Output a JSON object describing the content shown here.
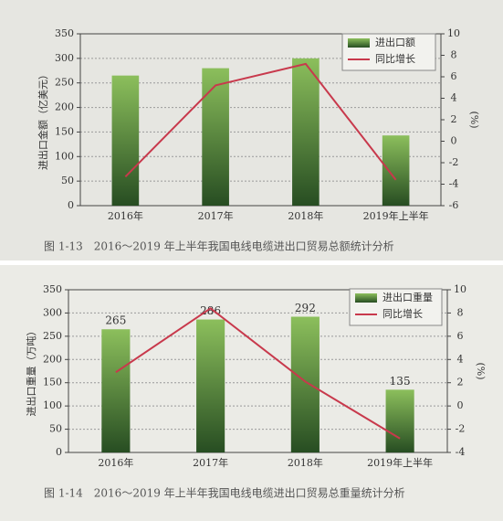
{
  "chart_data": [
    {
      "type": "combo",
      "y_label": "进出口金额（亿美元）",
      "y2_label": "(%)",
      "caption": "图 1-13　2016～2019 年上半年我国电线电缆进出口贸易总额统计分析",
      "categories": [
        "2016年",
        "2017年",
        "2018年",
        "2019年上半年"
      ],
      "series": [
        {
          "name": "进出口额",
          "type": "bar",
          "color": "#8cbf5c",
          "values": [
            265,
            280,
            300,
            143
          ]
        },
        {
          "name": "同比增长",
          "type": "line",
          "axis": "y2",
          "color": "#c8394c",
          "values": [
            -3.3,
            5.2,
            7.2,
            -3.6
          ]
        }
      ],
      "ylim": [
        0,
        350
      ],
      "yticks": [
        0,
        50,
        100,
        150,
        200,
        250,
        300,
        350
      ],
      "y2lim": [
        -6,
        10
      ],
      "y2ticks": [
        -6,
        -4,
        -2,
        0,
        2,
        4,
        6,
        8,
        10
      ],
      "grid": true,
      "data_labels": false,
      "legend": "upper right"
    },
    {
      "type": "combo",
      "y_label": "进出口重量（万吨）",
      "y2_label": "(%)",
      "caption": "图 1-14　2016～2019 年上半年我国电线电缆进出口贸易总重量统计分析",
      "categories": [
        "2016年",
        "2017年",
        "2018年",
        "2019年上半年"
      ],
      "series": [
        {
          "name": "进出口重量",
          "type": "bar",
          "color": "#8cbf5c",
          "values": [
            265,
            286,
            292,
            135
          ]
        },
        {
          "name": "同比增长",
          "type": "line",
          "axis": "y2",
          "color": "#c8394c",
          "values": [
            2.9,
            8.4,
            2.1,
            -2.8
          ]
        }
      ],
      "ylim": [
        0,
        350
      ],
      "yticks": [
        0,
        50,
        100,
        150,
        200,
        250,
        300,
        350
      ],
      "y2lim": [
        -4,
        10
      ],
      "y2ticks": [
        -4,
        -2,
        0,
        2,
        4,
        6,
        8,
        10
      ],
      "grid": true,
      "data_labels": true,
      "legend": "upper right"
    }
  ]
}
